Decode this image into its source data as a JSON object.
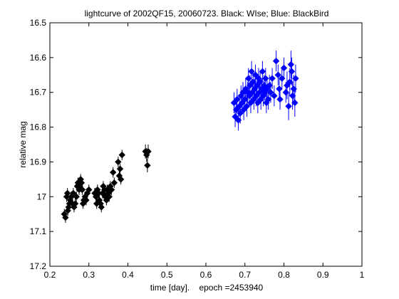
{
  "chart_data": {
    "type": "scatter",
    "title": "lightcurve of 2002QF15, 20060723. Black: WIse; Blue: BlackBird",
    "xlabel": "time [day].    epoch =2453940",
    "ylabel": "relative mag",
    "xlim": [
      0.2,
      1.0
    ],
    "ylim": [
      16.5,
      17.2
    ],
    "y_reversed": true,
    "xticks": [
      "0.2",
      "0.3",
      "0.4",
      "0.5",
      "0.6",
      "0.7",
      "0.8",
      "0.9",
      "1"
    ],
    "yticks": [
      "16.5",
      "16.6",
      "16.7",
      "16.8",
      "16.9",
      "17",
      "17.1",
      "17.2"
    ],
    "grid": false,
    "marker": "diamond",
    "error_bars": true,
    "series": [
      {
        "name": "WIse",
        "color": "#000000",
        "x": [
          0.237,
          0.24,
          0.243,
          0.245,
          0.246,
          0.248,
          0.25,
          0.252,
          0.255,
          0.258,
          0.26,
          0.262,
          0.265,
          0.268,
          0.27,
          0.272,
          0.275,
          0.277,
          0.279,
          0.281,
          0.283,
          0.285,
          0.287,
          0.29,
          0.293,
          0.296,
          0.3,
          0.315,
          0.318,
          0.32,
          0.322,
          0.325,
          0.327,
          0.33,
          0.332,
          0.335,
          0.337,
          0.34,
          0.342,
          0.345,
          0.347,
          0.35,
          0.352,
          0.355,
          0.358,
          0.362,
          0.365,
          0.375,
          0.378,
          0.38,
          0.382,
          0.385,
          0.445,
          0.448,
          0.45,
          0.452
        ],
        "y": [
          17.05,
          17.06,
          17.0,
          16.99,
          17.04,
          17.03,
          17.02,
          17.01,
          17.0,
          17.02,
          16.99,
          17.03,
          17.02,
          17.0,
          16.97,
          16.96,
          16.98,
          16.97,
          16.95,
          16.96,
          16.98,
          17.02,
          17.01,
          17.0,
          17.01,
          16.99,
          16.98,
          16.99,
          17.0,
          17.02,
          16.98,
          16.99,
          17.01,
          17.02,
          17.03,
          16.99,
          16.97,
          16.98,
          17.0,
          17.01,
          16.98,
          16.99,
          17.0,
          16.97,
          16.98,
          16.93,
          16.96,
          16.9,
          16.94,
          16.92,
          16.95,
          16.88,
          16.87,
          16.88,
          16.91,
          16.87
        ],
        "err": [
          0.015,
          0.015,
          0.015,
          0.015,
          0.015,
          0.015,
          0.015,
          0.015,
          0.015,
          0.015,
          0.015,
          0.015,
          0.015,
          0.015,
          0.015,
          0.015,
          0.015,
          0.015,
          0.015,
          0.015,
          0.015,
          0.015,
          0.015,
          0.015,
          0.015,
          0.015,
          0.015,
          0.015,
          0.015,
          0.015,
          0.015,
          0.015,
          0.015,
          0.015,
          0.015,
          0.015,
          0.015,
          0.015,
          0.015,
          0.015,
          0.015,
          0.015,
          0.015,
          0.015,
          0.015,
          0.015,
          0.015,
          0.015,
          0.015,
          0.015,
          0.015,
          0.015,
          0.02,
          0.02,
          0.02,
          0.02
        ]
      },
      {
        "name": "BlackBird",
        "color": "#0000ff",
        "x": [
          0.672,
          0.675,
          0.678,
          0.68,
          0.683,
          0.686,
          0.688,
          0.69,
          0.693,
          0.695,
          0.697,
          0.7,
          0.702,
          0.705,
          0.707,
          0.709,
          0.711,
          0.713,
          0.715,
          0.717,
          0.719,
          0.721,
          0.723,
          0.725,
          0.727,
          0.729,
          0.731,
          0.733,
          0.735,
          0.737,
          0.739,
          0.741,
          0.743,
          0.745,
          0.747,
          0.749,
          0.751,
          0.753,
          0.755,
          0.757,
          0.76,
          0.763,
          0.766,
          0.77,
          0.775,
          0.78,
          0.785,
          0.788,
          0.79,
          0.795,
          0.8,
          0.805,
          0.808,
          0.812,
          0.815,
          0.818,
          0.82,
          0.822,
          0.825,
          0.828,
          0.83
        ],
        "y": [
          16.73,
          16.77,
          16.75,
          16.72,
          16.78,
          16.74,
          16.76,
          16.71,
          16.73,
          16.7,
          16.75,
          16.72,
          16.69,
          16.74,
          16.7,
          16.66,
          16.71,
          16.68,
          16.73,
          16.64,
          16.7,
          16.67,
          16.72,
          16.69,
          16.65,
          16.71,
          16.68,
          16.73,
          16.66,
          16.7,
          16.67,
          16.72,
          16.69,
          16.64,
          16.71,
          16.68,
          16.7,
          16.66,
          16.73,
          16.69,
          16.72,
          16.68,
          16.7,
          16.66,
          16.71,
          16.61,
          16.65,
          16.69,
          16.72,
          16.66,
          16.63,
          16.7,
          16.68,
          16.74,
          16.67,
          16.62,
          16.64,
          16.71,
          16.69,
          16.73,
          16.66
        ],
        "err": [
          0.03,
          0.03,
          0.03,
          0.03,
          0.03,
          0.03,
          0.03,
          0.03,
          0.03,
          0.03,
          0.03,
          0.03,
          0.03,
          0.03,
          0.03,
          0.03,
          0.03,
          0.03,
          0.03,
          0.03,
          0.03,
          0.03,
          0.03,
          0.03,
          0.03,
          0.03,
          0.03,
          0.03,
          0.03,
          0.03,
          0.03,
          0.03,
          0.03,
          0.03,
          0.03,
          0.03,
          0.03,
          0.03,
          0.03,
          0.03,
          0.03,
          0.03,
          0.03,
          0.03,
          0.03,
          0.03,
          0.03,
          0.03,
          0.03,
          0.03,
          0.03,
          0.03,
          0.04,
          0.04,
          0.04,
          0.04,
          0.04,
          0.04,
          0.04,
          0.04,
          0.04
        ]
      }
    ]
  }
}
